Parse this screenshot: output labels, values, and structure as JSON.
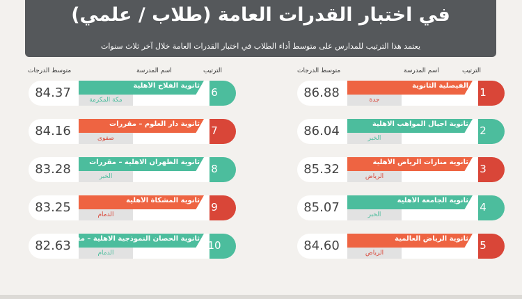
{
  "header": {
    "title": "في اختبار القدرات العامة (طلاب / علمي)",
    "subtitle": "يعتمد هذا الترتيب للمدارس على متوسط أداء الطلاب في اختبار القدرات العامة خلال آخر ثلاث سنوات"
  },
  "columns": {
    "rank": "الترتيب",
    "school": "اسم المدرسة",
    "score": "متوسط الدرجات"
  },
  "colors": {
    "teal": "#4cbd9d",
    "red": "#d94638",
    "orange": "#ee6442",
    "header": "#55585b"
  },
  "schools": [
    {
      "rank": "1",
      "name": "الفيصلية الثانوية",
      "city": "جدة",
      "score": "86.88",
      "color": "red"
    },
    {
      "rank": "2",
      "name": "ثانوية اجيال المواهب الاهلية",
      "city": "الخبر",
      "score": "86.04",
      "color": "teal"
    },
    {
      "rank": "3",
      "name": "ثانوية منارات الرياض الأهلية",
      "city": "الرياض",
      "score": "85.32",
      "color": "red"
    },
    {
      "rank": "4",
      "name": "ثانوية الجامعة الأهلية",
      "city": "الخبر",
      "score": "85.07",
      "color": "teal"
    },
    {
      "rank": "5",
      "name": "ثانوية الرياض العالمية",
      "city": "الرياض",
      "score": "84.60",
      "color": "red"
    },
    {
      "rank": "6",
      "name": "ثانوية الفلاح الأهلية",
      "city": "مكة المكرمة",
      "score": "84.37",
      "color": "teal"
    },
    {
      "rank": "7",
      "name": "ثانوية دار العلوم – مقررات",
      "city": "صفوى",
      "score": "84.16",
      "color": "red"
    },
    {
      "rank": "8",
      "name": "ثانوية الظهران الاهلية – مقررات",
      "city": "الخبر",
      "score": "83.28",
      "color": "teal"
    },
    {
      "rank": "9",
      "name": "ثانوية المشكاة الأهلية",
      "city": "الدمام",
      "score": "83.25",
      "color": "red"
    },
    {
      "rank": "10",
      "name": "ثانوية الحصان النموذجية الاهلية – مقررات",
      "city": "الدمام",
      "score": "82.63",
      "color": "teal"
    }
  ]
}
